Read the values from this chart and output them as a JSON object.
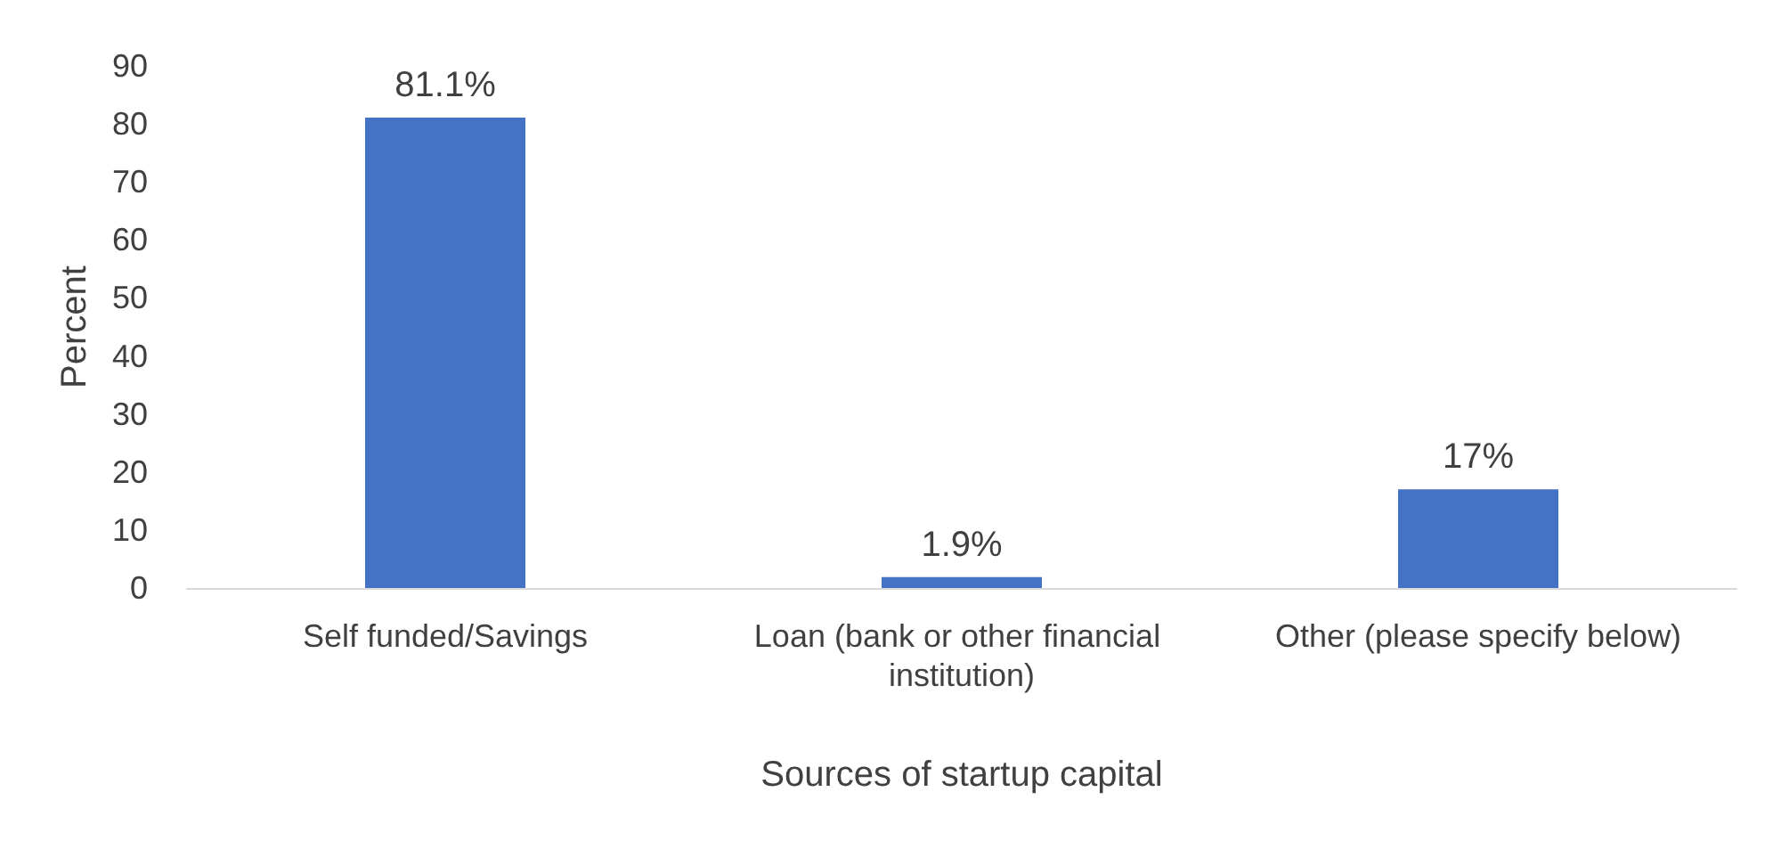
{
  "chart_data": {
    "type": "bar",
    "xlabel": "Sources of startup capital",
    "ylabel": "Percent",
    "categories": [
      "Self funded/Savings",
      "Loan (bank or other financial institution)",
      "Other (please specify below)"
    ],
    "values": [
      81.1,
      1.9,
      17
    ],
    "value_labels": [
      "81.1%",
      "1.9%",
      "17%"
    ],
    "color": "#4472c4",
    "ylim": [
      0,
      90
    ],
    "yticks": [
      0,
      10,
      20,
      30,
      40,
      50,
      60,
      70,
      80,
      90
    ],
    "grid": false
  }
}
